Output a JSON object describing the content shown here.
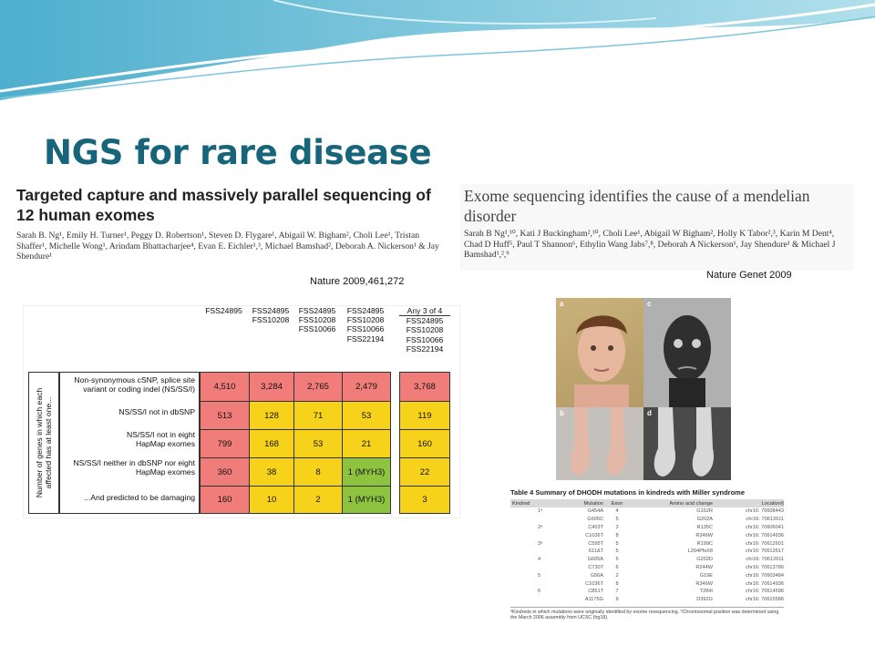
{
  "slide": {
    "title": "NGS for rare disease"
  },
  "paper_left": {
    "title": "Targeted capture and massively parallel sequencing of 12 human exomes",
    "authors": "Sarah B. Ng¹, Emily H. Turner¹, Peggy D. Robertson¹, Steven D. Flygare¹, Abigail W. Bigham², Choli Lee¹, Tristan Shaffer¹, Michelle Wong¹, Arindam Bhattacharjee⁴, Evan E. Eichler¹,³, Michael Bamshad², Deborah A. Nickerson¹ & Jay Shendure¹",
    "citation": "Nature 2009,461,272"
  },
  "paper_right": {
    "title": "Exome sequencing identifies the cause of a mendelian disorder",
    "authors": "Sarah B Ng¹,¹⁰, Kati J Buckingham²,¹⁰, Choli Lee¹, Abigail W Bigham², Holly K Tabor²,³, Karin M Dent⁴, Chad D Huff⁵, Paul T Shannon⁶, Ethylin Wang Jabs⁷,⁸, Deborah A Nickerson¹, Jay Shendure¹ & Michael J Bamshad¹,²,⁹",
    "citation": "Nature Genet 2009"
  },
  "gene_table": {
    "vertical_label": "Number of genes in which each affected has at least one...",
    "any_label": "Any 3 of 4",
    "columns": [
      [
        "FSS24895"
      ],
      [
        "FSS24895",
        "FSS10208"
      ],
      [
        "FSS24895",
        "FSS10208",
        "FSS10066"
      ],
      [
        "FSS24895",
        "FSS10208",
        "FSS10066",
        "FSS22194"
      ],
      [
        "FSS24895",
        "FSS10208",
        "FSS10066",
        "FSS22194"
      ]
    ],
    "rows": [
      {
        "label": "Non-synonymous cSNP, splice site variant or coding indel (NS/SS/I)",
        "values": [
          "4,510",
          "3,284",
          "2,765",
          "2,479",
          "3,768"
        ],
        "colors": [
          "red",
          "red",
          "red",
          "red",
          "red"
        ]
      },
      {
        "label": "NS/SS/I not in dbSNP",
        "values": [
          "513",
          "128",
          "71",
          "53",
          "119"
        ],
        "colors": [
          "red",
          "yel",
          "yel",
          "yel",
          "yel"
        ]
      },
      {
        "label": "NS/SS/I not in eight HapMap exomes",
        "values": [
          "799",
          "168",
          "53",
          "21",
          "160"
        ],
        "colors": [
          "red",
          "yel",
          "yel",
          "yel",
          "yel"
        ]
      },
      {
        "label": "NS/SS/I neither in dbSNP nor eight HapMap exomes",
        "values": [
          "360",
          "38",
          "8",
          "1 (MYH3)",
          "22"
        ],
        "colors": [
          "red",
          "yel",
          "yel",
          "grn",
          "yel"
        ]
      },
      {
        "label": "...And predicted to be damaging",
        "values": [
          "160",
          "10",
          "2",
          "1 (MYH3)",
          "3"
        ],
        "colors": [
          "red",
          "yel",
          "yel",
          "grn",
          "yel"
        ]
      }
    ]
  },
  "photos": {
    "labels": [
      "a",
      "c",
      "b",
      "d"
    ]
  },
  "table4": {
    "title": "Table 4 Summary of DHODH mutations in kindreds with Miller syndrome",
    "headers": [
      "Kindred",
      "Mutation",
      "Exon",
      "Amino acid change",
      "Location§"
    ],
    "rows": [
      [
        "1ᵃ",
        "G454A",
        "4",
        "G152R",
        "chr16: 70608443"
      ],
      [
        "",
        "G605C",
        "5",
        "G202A",
        "chr16: 70612611"
      ],
      [
        "2ᵃ",
        "C403T",
        "3",
        "R135C",
        "chr16: 70606041"
      ],
      [
        "",
        "C1036T",
        "8",
        "R346W",
        "chr16: 70614936"
      ],
      [
        "3ᵃ",
        "C595T",
        "5",
        "R199C",
        "chr16: 70612601"
      ],
      [
        "",
        "611ΔT",
        "5",
        "L204PfsX8",
        "chr16: 70612617"
      ],
      [
        "4",
        "G605A",
        "5",
        "G202D",
        "chr16: 70612611"
      ],
      [
        "",
        "C730T",
        "6",
        "R244W",
        "chr16: 70613786"
      ],
      [
        "5",
        "G56A",
        "2",
        "G19E",
        "chr16: 70603484"
      ],
      [
        "",
        "C1036T",
        "8",
        "R346W",
        "chr16: 70614936"
      ],
      [
        "6",
        "C851T",
        "7",
        "T284I",
        "chr16: 70614596"
      ],
      [
        "",
        "A1175G",
        "9",
        "D392G",
        "chr16: 70615586"
      ]
    ],
    "footnote": "ᵃKindreds in which mutations were originally identified by exome resequencing. ᵇChromosomal position was determined using the March 2006 assembly from UCSC (hg18)."
  },
  "colors": {
    "title": "#17657a",
    "red": "#f07d79",
    "yellow": "#f7d21a",
    "green": "#8dc33f"
  }
}
